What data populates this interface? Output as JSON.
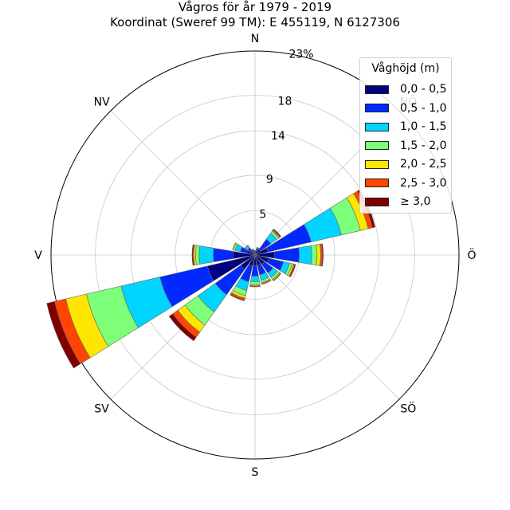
{
  "chart_data": {
    "type": "polar-stacked-bar",
    "title": "Vågros för år 1979 - 2019",
    "subtitle": "Koordinat (Sweref 99 TM): E 455119, N 6127306",
    "directions": [
      "N",
      "NNÖ",
      "NÖ",
      "ÖNÖ",
      "Ö",
      "ÖSÖ",
      "SÖ",
      "SSÖ",
      "S",
      "SSV",
      "SV",
      "VSV",
      "V",
      "VNV",
      "NV",
      "NNV"
    ],
    "direction_labels": [
      "N",
      "NÖ",
      "Ö",
      "SÖ",
      "S",
      "SV",
      "V",
      "NV"
    ],
    "radial_ticks": [
      5,
      9,
      14,
      18
    ],
    "radial_max_label": "23%",
    "radial_max": 23,
    "legend_title": "Våghöjd (m)",
    "series": [
      {
        "name": "0,0 - 0,5",
        "color": "#000080",
        "values": [
          0.4,
          0.5,
          0.8,
          1.5,
          2.2,
          1.6,
          1.3,
          1.2,
          1.2,
          1.3,
          2.0,
          5.5,
          2.5,
          1.0,
          0.5,
          0.4
        ]
      },
      {
        "name": "0,5 - 1,0",
        "color": "#0028ff",
        "values": [
          0.1,
          0.3,
          1.4,
          5.0,
          2.8,
          1.7,
          1.2,
          1.1,
          1.2,
          1.8,
          3.5,
          5.5,
          2.2,
          0.7,
          0.5,
          0.2
        ]
      },
      {
        "name": "1,0 - 1,5",
        "color": "#00d4ff",
        "values": [
          0.0,
          0.1,
          0.8,
          3.5,
          1.4,
          0.7,
          0.6,
          0.6,
          0.6,
          1.0,
          2.4,
          4.5,
          1.6,
          0.6,
          0.3,
          0.1
        ]
      },
      {
        "name": "1,5 - 2,0",
        "color": "#7dff7a",
        "values": [
          0.0,
          0.0,
          0.3,
          2.2,
          0.6,
          0.3,
          0.3,
          0.3,
          0.4,
          0.6,
          1.8,
          4.0,
          0.4,
          0.2,
          0.1,
          0.0
        ]
      },
      {
        "name": "2,0 - 2,5",
        "color": "#ffe600",
        "values": [
          0.0,
          0.0,
          0.1,
          0.9,
          0.4,
          0.2,
          0.1,
          0.1,
          0.1,
          0.3,
          1.0,
          2.4,
          0.2,
          0.1,
          0.0,
          0.0
        ]
      },
      {
        "name": "2,5 - 3,0",
        "color": "#ff4500",
        "values": [
          0.0,
          0.0,
          0.1,
          0.5,
          0.2,
          0.1,
          0.1,
          0.1,
          0.1,
          0.2,
          0.7,
          1.3,
          0.1,
          0.0,
          0.0,
          0.0
        ]
      },
      {
        "name": "≥ 3,0",
        "color": "#800000",
        "values": [
          0.0,
          0.0,
          0.1,
          0.3,
          0.1,
          0.1,
          0.0,
          0.0,
          0.0,
          0.1,
          0.5,
          0.9,
          0.1,
          0.0,
          0.0,
          0.0
        ]
      }
    ],
    "grid": true,
    "legend_position": "top-right"
  }
}
